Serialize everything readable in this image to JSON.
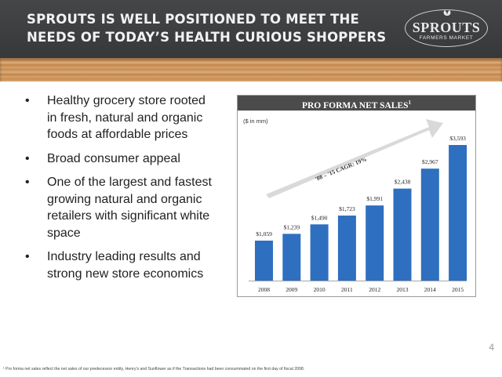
{
  "header": {
    "title_line1": "SPROUTS IS WELL POSITIONED TO MEET THE",
    "title_line2": "NEEDS OF TODAY’S HEALTH CURIOUS SHOPPERS",
    "logo_name": "SPROUTS",
    "logo_sub": "FARMERS MARKET"
  },
  "bullets": [
    "Healthy grocery store rooted in fresh, natural and organic foods at affordable prices",
    "Broad consumer appeal",
    "One of the largest and fastest growing natural and organic retailers with significant white space",
    "Industry leading results and strong new store economics"
  ],
  "bullet_marker": "•",
  "colors": {
    "bar": "#2e6fc0",
    "header_bg": "#3d3f40",
    "chart_head_bg": "#4b4b4b",
    "arrow": "#d9d9d9"
  },
  "chart_data": {
    "type": "bar",
    "title": "PRO FORMA NET SALES",
    "title_sup": "1",
    "unit_label": "($ in mm)",
    "categories": [
      "2008",
      "2009",
      "2010",
      "2011",
      "2012",
      "2013",
      "2014",
      "2015"
    ],
    "values": [
      1059,
      1239,
      1490,
      1723,
      1991,
      2438,
      2967,
      3593
    ],
    "value_labels": [
      "$1,059",
      "$1,239",
      "$1,490",
      "$1,723",
      "$1,991",
      "$2,438",
      "$2,967",
      "$3,593"
    ],
    "annotation": "'08 – '15 CAGR: 19%",
    "ylim": [
      0,
      3593
    ]
  },
  "page_number": "4",
  "footnote": "¹ Pro forma net sales reflect the net sales of our predecessor entity, Henry’s and Sunflower as if the Transactions had been consummated on the first day of fiscal 2008."
}
